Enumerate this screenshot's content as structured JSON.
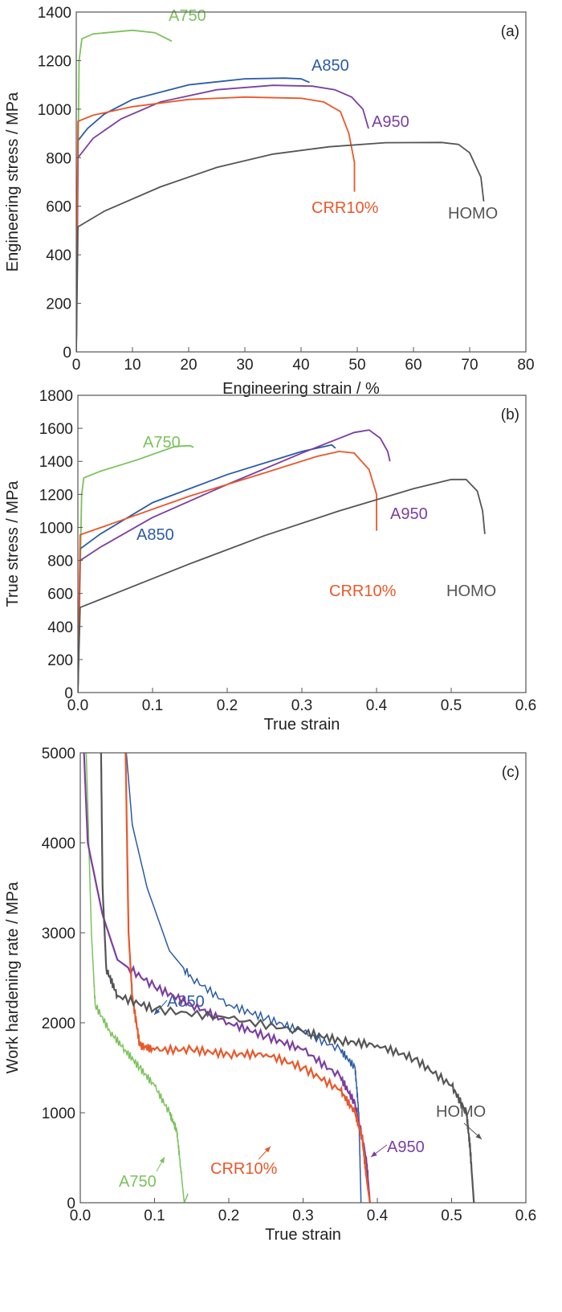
{
  "colors": {
    "A750": "#7cc25c",
    "A850": "#2a5aa8",
    "A950": "#7b3fa0",
    "CRR10%": "#e8582a",
    "HOMO": "#555555"
  },
  "chart_data": [
    {
      "panel": "(a)",
      "type": "line",
      "xlabel": "Engineering strain / %",
      "ylabel": "Engineering stress / MPa",
      "xlim": [
        0,
        80
      ],
      "ylim": [
        0,
        1400
      ],
      "xticks": [
        0,
        10,
        20,
        30,
        40,
        50,
        60,
        70,
        80
      ],
      "yticks": [
        0,
        200,
        400,
        600,
        800,
        1000,
        1200,
        1400
      ],
      "grid": false,
      "series": [
        {
          "name": "A750",
          "x": [
            0,
            0.5,
            1,
            3,
            10,
            14,
            17
          ],
          "y": [
            0,
            1200,
            1290,
            1310,
            1325,
            1315,
            1280
          ]
        },
        {
          "name": "A850",
          "x": [
            0,
            0.3,
            2,
            5,
            10,
            20,
            30,
            37,
            40,
            41.5
          ],
          "y": [
            0,
            870,
            920,
            980,
            1040,
            1100,
            1125,
            1128,
            1125,
            1110
          ]
        },
        {
          "name": "A950",
          "x": [
            0,
            0.3,
            3,
            8,
            15,
            25,
            35,
            42,
            46,
            49,
            51,
            52
          ],
          "y": [
            0,
            800,
            880,
            960,
            1030,
            1080,
            1098,
            1095,
            1080,
            1050,
            1000,
            920
          ]
        },
        {
          "name": "CRR10%",
          "x": [
            0,
            0.3,
            3,
            10,
            20,
            30,
            40,
            44,
            47,
            48.5,
            49.5,
            49.5
          ],
          "y": [
            0,
            950,
            975,
            1010,
            1040,
            1050,
            1045,
            1030,
            990,
            900,
            780,
            660
          ]
        },
        {
          "name": "HOMO",
          "x": [
            0,
            0.3,
            5,
            15,
            25,
            35,
            45,
            55,
            65,
            68,
            70,
            72,
            72.5
          ],
          "y": [
            0,
            515,
            580,
            680,
            760,
            815,
            845,
            862,
            863,
            855,
            820,
            720,
            620
          ]
        }
      ]
    },
    {
      "panel": "(b)",
      "type": "line",
      "xlabel": "True strain",
      "ylabel": "True stress / MPa",
      "xlim": [
        0,
        0.6
      ],
      "ylim": [
        0,
        1800
      ],
      "xticks": [
        0.0,
        0.1,
        0.2,
        0.3,
        0.4,
        0.5,
        0.6
      ],
      "yticks": [
        0,
        200,
        400,
        600,
        800,
        1000,
        1200,
        1400,
        1600,
        1800
      ],
      "grid": false,
      "series": [
        {
          "name": "A750",
          "x": [
            0,
            0.005,
            0.008,
            0.03,
            0.08,
            0.13,
            0.15,
            0.155
          ],
          "y": [
            0,
            1200,
            1300,
            1340,
            1410,
            1490,
            1495,
            1485
          ]
        },
        {
          "name": "A850",
          "x": [
            0,
            0.003,
            0.03,
            0.1,
            0.2,
            0.3,
            0.34,
            0.345
          ],
          "y": [
            0,
            870,
            960,
            1150,
            1320,
            1460,
            1500,
            1480
          ]
        },
        {
          "name": "A950",
          "x": [
            0,
            0.003,
            0.03,
            0.1,
            0.2,
            0.3,
            0.37,
            0.39,
            0.405,
            0.415,
            0.418
          ],
          "y": [
            0,
            800,
            880,
            1060,
            1260,
            1450,
            1575,
            1590,
            1540,
            1460,
            1400
          ]
        },
        {
          "name": "CRR10%",
          "x": [
            0,
            0.003,
            0.05,
            0.15,
            0.25,
            0.32,
            0.35,
            0.37,
            0.39,
            0.4,
            0.4
          ],
          "y": [
            0,
            955,
            1030,
            1190,
            1330,
            1430,
            1460,
            1450,
            1350,
            1200,
            980
          ]
        },
        {
          "name": "HOMO",
          "x": [
            0,
            0.003,
            0.05,
            0.15,
            0.25,
            0.35,
            0.45,
            0.5,
            0.52,
            0.535,
            0.542,
            0.545
          ],
          "y": [
            0,
            515,
            600,
            780,
            950,
            1100,
            1235,
            1290,
            1290,
            1220,
            1100,
            960
          ]
        }
      ]
    },
    {
      "panel": "(c)",
      "type": "line",
      "xlabel": "True strain",
      "ylabel": "Work hardening rate / MPa",
      "xlim": [
        0,
        0.6
      ],
      "ylim": [
        0,
        5000
      ],
      "xticks": [
        0.0,
        0.1,
        0.2,
        0.3,
        0.4,
        0.5,
        0.6
      ],
      "yticks": [
        0,
        1000,
        2000,
        3000,
        4000,
        5000
      ],
      "grid": false,
      "series": [
        {
          "name": "A750",
          "x": [
            0.008,
            0.015,
            0.02,
            0.04,
            0.06,
            0.08,
            0.1,
            0.12,
            0.13,
            0.135,
            0.14,
            0.145
          ],
          "y": [
            5000,
            3000,
            2200,
            1900,
            1700,
            1500,
            1300,
            1000,
            800,
            400,
            0,
            100
          ]
        },
        {
          "name": "A850",
          "x": [
            0.062,
            0.07,
            0.09,
            0.12,
            0.15,
            0.2,
            0.25,
            0.3,
            0.35,
            0.37,
            0.375,
            0.378
          ],
          "y": [
            5000,
            4200,
            3500,
            2800,
            2500,
            2200,
            2050,
            1900,
            1700,
            1500,
            1000,
            0
          ]
        },
        {
          "name": "A950",
          "x": [
            0.005,
            0.01,
            0.03,
            0.05,
            0.1,
            0.15,
            0.2,
            0.25,
            0.3,
            0.35,
            0.37,
            0.385,
            0.39
          ],
          "y": [
            5000,
            4000,
            3200,
            2700,
            2400,
            2200,
            2000,
            1850,
            1700,
            1400,
            1100,
            500,
            0
          ]
        },
        {
          "name": "CRR10%",
          "x": [
            0.061,
            0.065,
            0.07,
            0.08,
            0.1,
            0.15,
            0.2,
            0.25,
            0.3,
            0.35,
            0.37,
            0.38,
            0.385,
            0.39
          ],
          "y": [
            5000,
            3000,
            2300,
            1750,
            1700,
            1700,
            1650,
            1650,
            1500,
            1250,
            1000,
            700,
            300,
            0
          ]
        },
        {
          "name": "HOMO",
          "x": [
            0.028,
            0.03,
            0.035,
            0.05,
            0.1,
            0.2,
            0.3,
            0.35,
            0.4,
            0.45,
            0.5,
            0.52,
            0.525,
            0.53
          ],
          "y": [
            5000,
            3500,
            2600,
            2300,
            2150,
            2050,
            1900,
            1800,
            1750,
            1600,
            1300,
            1000,
            600,
            0
          ]
        }
      ]
    }
  ]
}
